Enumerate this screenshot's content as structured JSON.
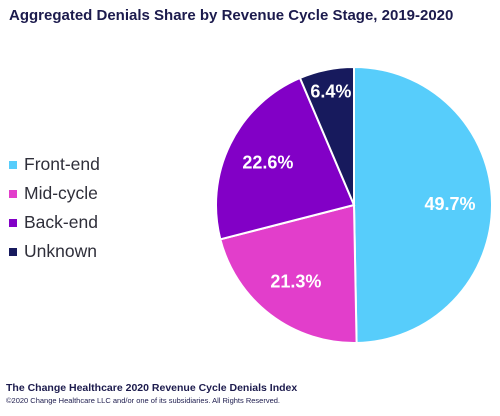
{
  "chart_data": {
    "type": "pie",
    "title": "Aggregated Denials Share by Revenue Cycle Stage, 2019-2020",
    "slices": [
      {
        "label": "Front-end",
        "value": 49.7,
        "display": "49.7%",
        "color": "#57cdfb"
      },
      {
        "label": "Mid-cycle",
        "value": 21.3,
        "display": "21.3%",
        "color": "#e23ecb"
      },
      {
        "label": "Back-end",
        "value": 22.6,
        "display": "22.6%",
        "color": "#8200c6"
      },
      {
        "label": "Unknown",
        "value": 6.4,
        "display": "6.4%",
        "color": "#171a5d"
      }
    ],
    "legend_position": "left"
  },
  "footer": {
    "title": "The Change Healthcare 2020 Revenue Cycle Denials Index",
    "copyright": "©2020 Change Healthcare LLC and/or one of its subsidiaries. All Rights Reserved."
  }
}
